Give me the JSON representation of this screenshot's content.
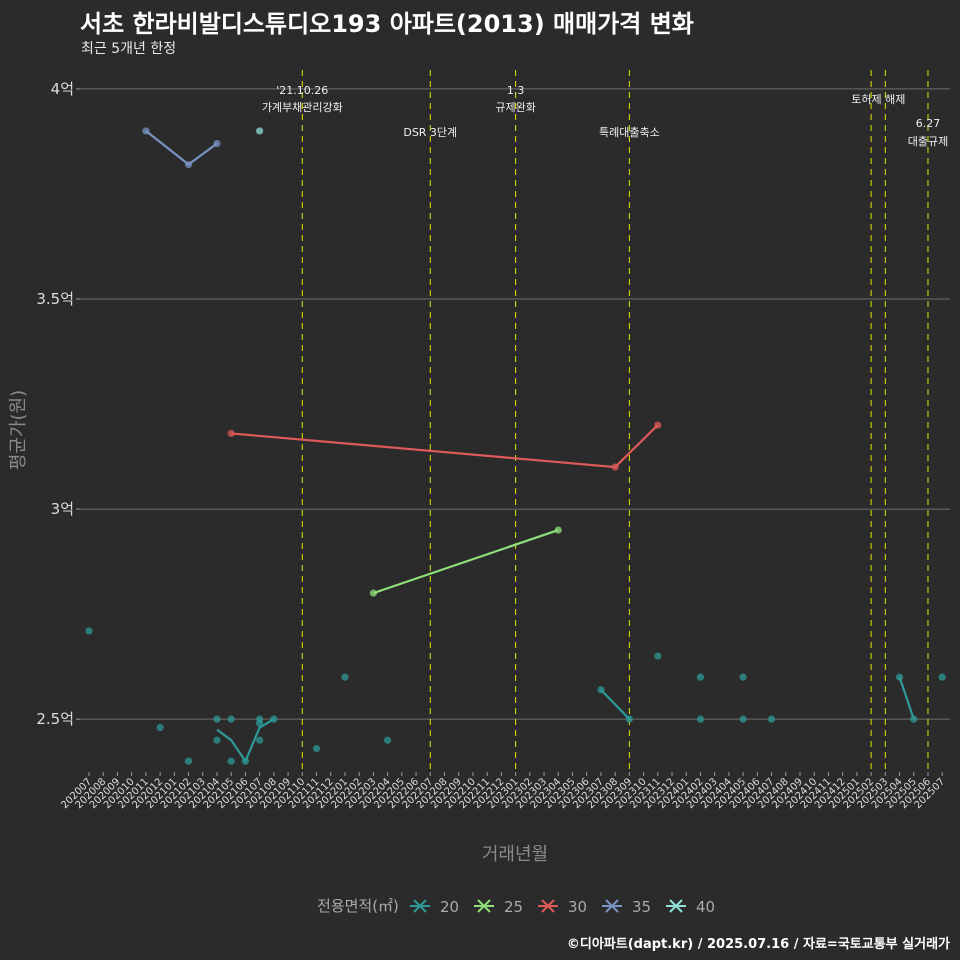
{
  "title": "서초 한라비발디스튜디오193 아파트(2013) 매매가격 변화",
  "subtitle": "최근 5개년 한정",
  "caption": "©디아파트(dapt.kr) / 2025.07.16 / 자료=국토교통부 실거래가",
  "chart_data": {
    "type": "scatter",
    "title": "서초 한라비발디스튜디오193 아파트(2013) 매매가격 변화",
    "xlabel": "거래년월",
    "ylabel": "평균가(원)",
    "ylim": [
      2.379,
      4.045
    ],
    "yticks": [
      {
        "v": 2.5,
        "label": "2.5억"
      },
      {
        "v": 3,
        "label": "3억"
      },
      {
        "v": 3.5,
        "label": "3.5억"
      },
      {
        "v": 4,
        "label": "4억"
      }
    ],
    "x_start": "202007",
    "x_months": 61,
    "legend_title": "전용면적(㎡)",
    "legend_position": "bottom",
    "series": [
      {
        "name": "20",
        "color": "#2e9a98",
        "points": [
          [
            "202007",
            2.71
          ],
          [
            "202012",
            2.48
          ],
          [
            "202102",
            2.4
          ],
          [
            "202104",
            2.5
          ],
          [
            "202104",
            2.45
          ],
          [
            "202105",
            2.5
          ],
          [
            "202105",
            2.4
          ],
          [
            "202106",
            2.4
          ],
          [
            "202107",
            2.5
          ],
          [
            "202107",
            2.49
          ],
          [
            "202107",
            2.45
          ],
          [
            "202108",
            2.5
          ],
          [
            "202111",
            2.43
          ],
          [
            "202201",
            2.6
          ],
          [
            "202204",
            2.45
          ],
          [
            "202307",
            2.57
          ],
          [
            "202309",
            2.5
          ],
          [
            "202311",
            2.65
          ],
          [
            "202402",
            2.6
          ],
          [
            "202402",
            2.5
          ],
          [
            "202405",
            2.6
          ],
          [
            "202405",
            2.5
          ],
          [
            "202407",
            2.5
          ],
          [
            "202504",
            2.6
          ],
          [
            "202505",
            2.5
          ],
          [
            "202507",
            2.6
          ]
        ],
        "lines": [
          [
            [
              "202104",
              2.475
            ],
            [
              "202105",
              2.45
            ],
            [
              "202106",
              2.4
            ],
            [
              "202107",
              2.48
            ],
            [
              "202108",
              2.5
            ]
          ],
          [
            [
              "202307",
              2.57
            ],
            [
              "202309",
              2.5
            ]
          ],
          [
            [
              "202504",
              2.6
            ],
            [
              "202505",
              2.5
            ]
          ]
        ]
      },
      {
        "name": "25",
        "color": "#8fe07a",
        "points": [
          [
            "202203",
            2.8
          ],
          [
            "202304",
            2.95
          ]
        ],
        "lines": [
          [
            [
              "202203",
              2.8
            ],
            [
              "202304",
              2.95
            ]
          ]
        ]
      },
      {
        "name": "30",
        "color": "#e05a5a",
        "points": [
          [
            "202105",
            3.18
          ],
          [
            "202308",
            3.1
          ],
          [
            "202311",
            3.2
          ]
        ],
        "lines": [
          [
            [
              "202105",
              3.18
            ],
            [
              "202308",
              3.1
            ],
            [
              "202311",
              3.2
            ]
          ]
        ]
      },
      {
        "name": "35",
        "color": "#7893c4",
        "points": [
          [
            "202011",
            3.9
          ],
          [
            "202102",
            3.82
          ],
          [
            "202104",
            3.87
          ]
        ],
        "lines": [
          [
            [
              "202011",
              3.9
            ],
            [
              "202102",
              3.82
            ],
            [
              "202104",
              3.87
            ]
          ]
        ]
      },
      {
        "name": "40",
        "color": "#8ee0d8",
        "points": [
          [
            "202107",
            3.9
          ]
        ],
        "lines": []
      }
    ],
    "events": [
      {
        "month": "202110",
        "lines": [
          "'21.10.26",
          "가계부채관리강화"
        ],
        "level": "top"
      },
      {
        "month": "202207",
        "lines": [
          "DSR 3단계"
        ],
        "level": "low"
      },
      {
        "month": "202301",
        "lines": [
          "1.3",
          "규제완화"
        ],
        "level": "top"
      },
      {
        "month": "202309",
        "lines": [
          "특례대출축소"
        ],
        "level": "low"
      },
      {
        "month": "202502",
        "lines": [],
        "level": "none"
      },
      {
        "month": "202503",
        "lines": [
          "토허제 해제"
        ],
        "level": "mid"
      },
      {
        "month": "202506",
        "lines": [
          "6.27",
          "대출규제"
        ],
        "level": "lower"
      }
    ]
  }
}
